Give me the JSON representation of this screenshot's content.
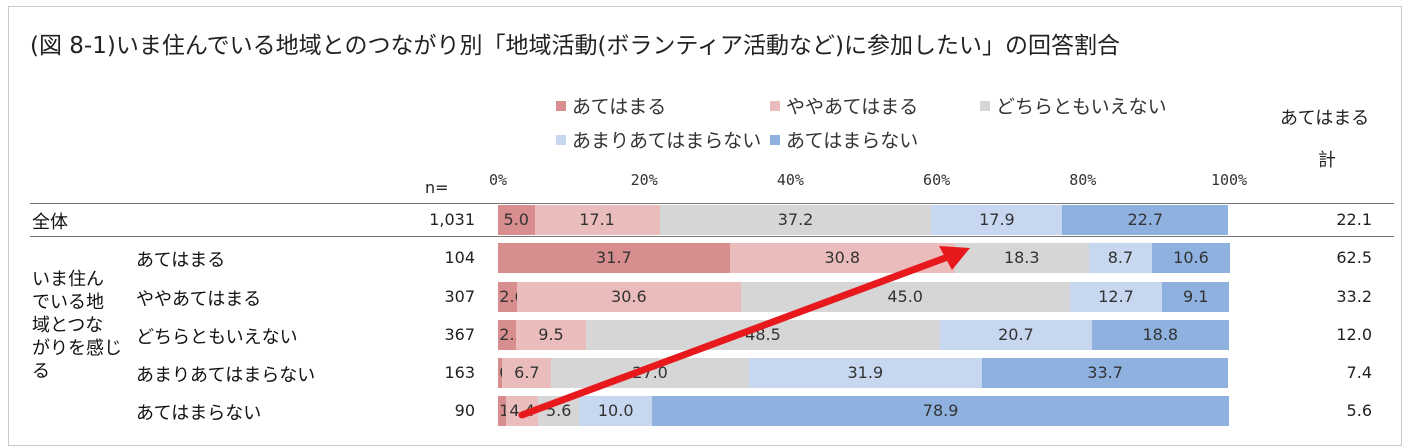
{
  "chart_data": {
    "type": "bar",
    "orientation": "horizontal",
    "stacked": true,
    "title": "(図 8-1)いま住んでいる地域とのつながり別「地域活動(ボランティア活動など)に参加したい」の回答割合",
    "n_header": "n=",
    "total_header": [
      "あてはまる",
      "計"
    ],
    "group_label": "いま住んでいる地域とつながりを感じる",
    "xlim": [
      0,
      100
    ],
    "xticks": [
      "0%",
      "20%",
      "40%",
      "60%",
      "80%",
      "100%"
    ],
    "legend_position": "top",
    "series": [
      {
        "name": "あてはまる",
        "color": "#d88e8e"
      },
      {
        "name": "ややあてはまる",
        "color": "#ebbcbc"
      },
      {
        "name": "どちらともいえない",
        "color": "#d6d6d6"
      },
      {
        "name": "あまりあてはまらない",
        "color": "#c6d7ef"
      },
      {
        "name": "あてはまらない",
        "color": "#8eb1e0"
      }
    ],
    "rows": [
      {
        "label": "全体",
        "n": "1,031",
        "values": [
          5.0,
          17.1,
          37.2,
          17.9,
          22.7
        ],
        "labels": [
          "5.0",
          "17.1",
          "37.2",
          "17.9",
          "22.7"
        ],
        "total": "22.1"
      },
      {
        "label": "あてはまる",
        "n": "104",
        "values": [
          31.7,
          30.8,
          18.3,
          8.7,
          10.6
        ],
        "labels": [
          "31.7",
          "30.8",
          "18.3",
          "8.7",
          "10.6"
        ],
        "total": "62.5"
      },
      {
        "label": "ややあてはまる",
        "n": "307",
        "values": [
          2.6,
          30.6,
          45.0,
          12.7,
          9.1
        ],
        "labels": [
          "2.6",
          "30.6",
          "45.0",
          "12.7",
          "9.1"
        ],
        "total": "33.2"
      },
      {
        "label": "どちらともいえない",
        "n": "367",
        "values": [
          2.5,
          9.5,
          48.5,
          20.7,
          18.8
        ],
        "labels": [
          "2.5",
          "9.5",
          "48.5",
          "20.7",
          "18.8"
        ],
        "total": "12.0"
      },
      {
        "label": "あまりあてはまらない",
        "n": "163",
        "values": [
          0.6,
          6.7,
          27.0,
          31.9,
          33.7
        ],
        "labels": [
          "0.6",
          "6.7",
          "27.0",
          "31.9",
          "33.7"
        ],
        "total": "7.4"
      },
      {
        "label": "あてはまらない",
        "n": "90",
        "values": [
          1.1,
          4.4,
          5.6,
          10.0,
          78.9
        ],
        "labels": [
          "1.1",
          "4.4",
          "5.6",
          "10.0",
          "78.9"
        ],
        "total": "5.6"
      }
    ],
    "annotation": {
      "type": "arrow",
      "color": "#e8191c"
    }
  }
}
